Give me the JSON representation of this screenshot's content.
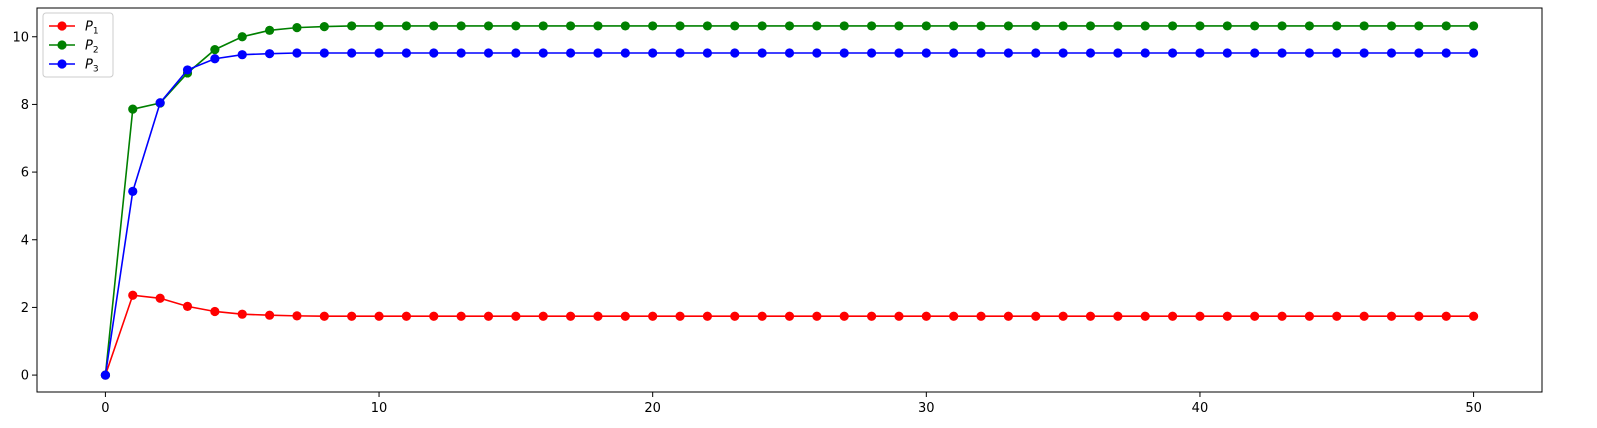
{
  "chart_data": {
    "type": "line",
    "title": "",
    "xlabel": "",
    "ylabel": "",
    "xlim": [
      -2.5,
      52.5
    ],
    "ylim": [
      -0.5,
      10.85
    ],
    "x_ticks": [
      0,
      10,
      20,
      30,
      40,
      50
    ],
    "y_ticks": [
      0,
      2,
      4,
      6,
      8,
      10
    ],
    "grid": false,
    "legend": "top-left",
    "x": [
      0,
      1,
      2,
      3,
      4,
      5,
      6,
      7,
      8,
      9,
      10,
      11,
      12,
      13,
      14,
      15,
      16,
      17,
      18,
      19,
      20,
      21,
      22,
      23,
      24,
      25,
      26,
      27,
      28,
      29,
      30,
      31,
      32,
      33,
      34,
      35,
      36,
      37,
      38,
      39,
      40,
      41,
      42,
      43,
      44,
      45,
      46,
      47,
      48,
      49,
      50
    ],
    "series": [
      {
        "name": "P",
        "subscript": "1",
        "color": "#ff0000",
        "marker": "circle",
        "values": [
          0,
          2.36,
          2.27,
          2.03,
          1.88,
          1.8,
          1.77,
          1.75,
          1.74,
          1.74,
          1.74,
          1.74,
          1.74,
          1.74,
          1.74,
          1.74,
          1.74,
          1.74,
          1.74,
          1.74,
          1.74,
          1.74,
          1.74,
          1.74,
          1.74,
          1.74,
          1.74,
          1.74,
          1.74,
          1.74,
          1.74,
          1.74,
          1.74,
          1.74,
          1.74,
          1.74,
          1.74,
          1.74,
          1.74,
          1.74,
          1.74,
          1.74,
          1.74,
          1.74,
          1.74,
          1.74,
          1.74,
          1.74,
          1.74,
          1.74,
          1.74
        ]
      },
      {
        "name": "P",
        "subscript": "2",
        "color": "#008000",
        "marker": "circle",
        "values": [
          0,
          7.86,
          8.04,
          8.93,
          9.62,
          10.0,
          10.19,
          10.27,
          10.3,
          10.32,
          10.32,
          10.32,
          10.32,
          10.32,
          10.32,
          10.32,
          10.32,
          10.32,
          10.32,
          10.32,
          10.32,
          10.32,
          10.32,
          10.32,
          10.32,
          10.32,
          10.32,
          10.32,
          10.32,
          10.32,
          10.32,
          10.32,
          10.32,
          10.32,
          10.32,
          10.32,
          10.32,
          10.32,
          10.32,
          10.32,
          10.32,
          10.32,
          10.32,
          10.32,
          10.32,
          10.32,
          10.32,
          10.32,
          10.32,
          10.32,
          10.32
        ]
      },
      {
        "name": "P",
        "subscript": "3",
        "color": "#0000ff",
        "marker": "circle",
        "values": [
          0,
          5.43,
          8.05,
          9.02,
          9.35,
          9.47,
          9.5,
          9.52,
          9.52,
          9.52,
          9.52,
          9.52,
          9.52,
          9.52,
          9.52,
          9.52,
          9.52,
          9.52,
          9.52,
          9.52,
          9.52,
          9.52,
          9.52,
          9.52,
          9.52,
          9.52,
          9.52,
          9.52,
          9.52,
          9.52,
          9.52,
          9.52,
          9.52,
          9.52,
          9.52,
          9.52,
          9.52,
          9.52,
          9.52,
          9.52,
          9.52,
          9.52,
          9.52,
          9.52,
          9.52,
          9.52,
          9.52,
          9.52,
          9.52,
          9.52,
          9.52
        ]
      }
    ]
  }
}
